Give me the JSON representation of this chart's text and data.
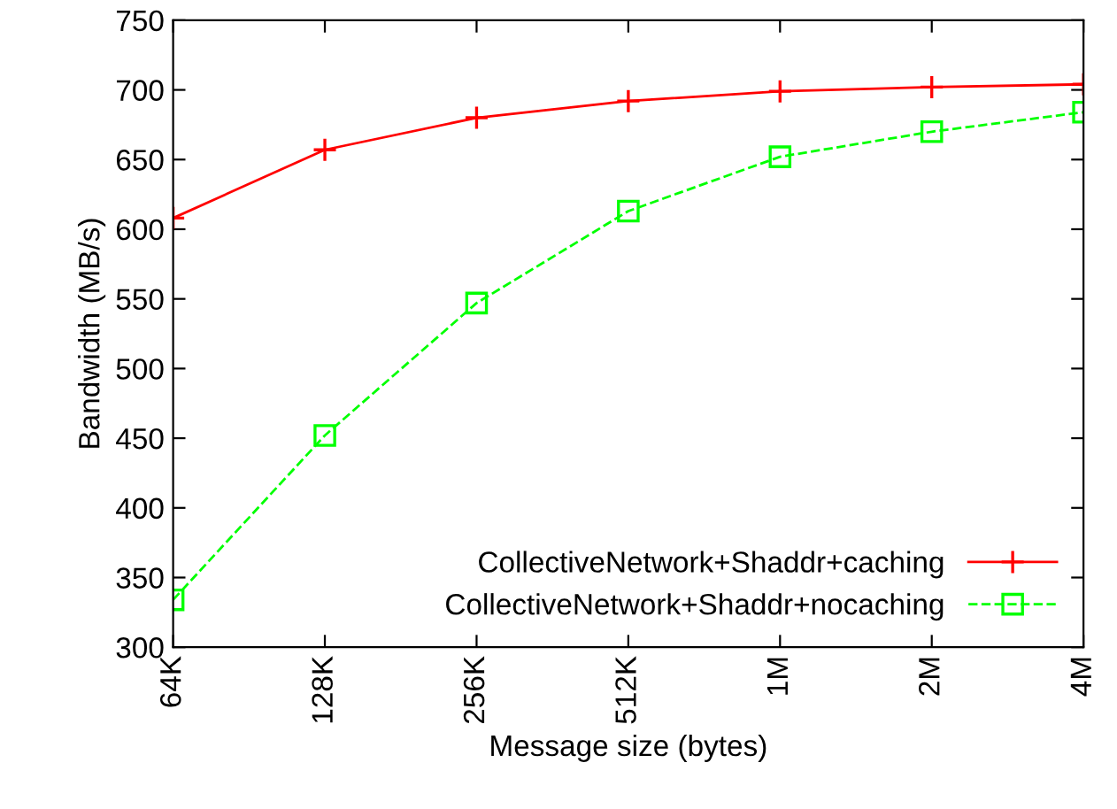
{
  "chart_data": {
    "type": "line",
    "xlabel": "Message size (bytes)",
    "ylabel": "Bandwidth (MB/s)",
    "categories": [
      "64K",
      "128K",
      "256K",
      "512K",
      "1M",
      "2M",
      "4M"
    ],
    "ylim": [
      300,
      750
    ],
    "yticks": [
      300,
      350,
      400,
      450,
      500,
      550,
      600,
      650,
      700,
      750
    ],
    "legend": "bottom right",
    "grid": false,
    "series": [
      {
        "name": "CollectiveNetwork+Shaddr+caching",
        "color": "#ff0000",
        "marker": "cross",
        "line_style": "solid",
        "values": [
          608,
          657,
          680,
          692,
          699,
          702,
          704
        ]
      },
      {
        "name": "CollectiveNetwork+Shaddr+nocaching",
        "color": "#00ff00",
        "marker": "square",
        "line_style": "dashed",
        "values": [
          334,
          452,
          547,
          613,
          652,
          670,
          684
        ]
      }
    ]
  }
}
